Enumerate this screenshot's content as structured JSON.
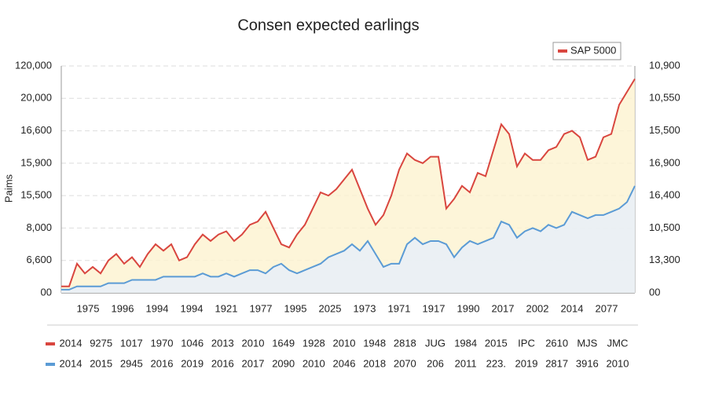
{
  "chart_data": {
    "type": "line",
    "title": "Consen expected earlings",
    "ylabel": "Paims",
    "legend": "SAP 5000",
    "legend_position": "upper right",
    "grid": true,
    "ylim": [
      0,
      7
    ],
    "yticks": [
      {
        "value": 0,
        "label": "00"
      },
      {
        "value": 1,
        "label": "6,600"
      },
      {
        "value": 2,
        "label": "8,000"
      },
      {
        "value": 3,
        "label": "15,500"
      },
      {
        "value": 4,
        "label": "15,900"
      },
      {
        "value": 5,
        "label": "16,600"
      },
      {
        "value": 6,
        "label": "20,000"
      },
      {
        "value": 7,
        "label": "120,000"
      }
    ],
    "y2lim": [
      0,
      7
    ],
    "y2ticks": [
      {
        "value": 0,
        "label": "00"
      },
      {
        "value": 1,
        "label": "13,300"
      },
      {
        "value": 2,
        "label": "10,500"
      },
      {
        "value": 3,
        "label": "16,400"
      },
      {
        "value": 4,
        "label": "16,900"
      },
      {
        "value": 5,
        "label": "15,500"
      },
      {
        "value": 6,
        "label": "10,550"
      },
      {
        "value": 7,
        "label": "10,900"
      }
    ],
    "xtick_labels": [
      "1975",
      "1996",
      "1994",
      "1994",
      "1921",
      "1977",
      "1995",
      "2025",
      "1973",
      "1971",
      "1917",
      "1990",
      "2017",
      "2002",
      "2014",
      "2077"
    ],
    "series": [
      {
        "name": "SAP 5000",
        "color": "#d9463f",
        "fill": "#fdf3cf",
        "values": [
          0.2,
          0.2,
          0.9,
          0.6,
          0.8,
          0.6,
          1.0,
          1.2,
          0.9,
          1.1,
          0.8,
          1.2,
          1.5,
          1.3,
          1.5,
          1.0,
          1.1,
          1.5,
          1.8,
          1.6,
          1.8,
          1.9,
          1.6,
          1.8,
          2.1,
          2.2,
          2.5,
          2.0,
          1.5,
          1.4,
          1.8,
          2.1,
          2.6,
          3.1,
          3.0,
          3.2,
          3.5,
          3.8,
          3.2,
          2.6,
          2.1,
          2.4,
          3.0,
          3.8,
          4.3,
          4.1,
          4.0,
          4.2,
          4.2,
          2.6,
          2.9,
          3.3,
          3.1,
          3.7,
          3.6,
          4.4,
          5.2,
          4.9,
          3.9,
          4.3,
          4.1,
          4.1,
          4.4,
          4.5,
          4.9,
          5.0,
          4.8,
          4.1,
          4.2,
          4.8,
          4.9,
          5.8,
          6.2,
          6.6
        ]
      },
      {
        "name": "",
        "color": "#5b9bd5",
        "fill": "#e6effa",
        "values": [
          0.1,
          0.1,
          0.2,
          0.2,
          0.2,
          0.2,
          0.3,
          0.3,
          0.3,
          0.4,
          0.4,
          0.4,
          0.4,
          0.5,
          0.5,
          0.5,
          0.5,
          0.5,
          0.6,
          0.5,
          0.5,
          0.6,
          0.5,
          0.6,
          0.7,
          0.7,
          0.6,
          0.8,
          0.9,
          0.7,
          0.6,
          0.7,
          0.8,
          0.9,
          1.1,
          1.2,
          1.3,
          1.5,
          1.3,
          1.6,
          1.2,
          0.8,
          0.9,
          0.9,
          1.5,
          1.7,
          1.5,
          1.6,
          1.6,
          1.5,
          1.1,
          1.4,
          1.6,
          1.5,
          1.6,
          1.7,
          2.2,
          2.1,
          1.7,
          1.9,
          2.0,
          1.9,
          2.1,
          2.0,
          2.1,
          2.5,
          2.4,
          2.3,
          2.4,
          2.4,
          2.5,
          2.6,
          2.8,
          3.3
        ]
      }
    ],
    "rows": [
      {
        "color": "#d9463f",
        "cells": [
          "2014",
          "9275",
          "1017",
          "1970",
          "1046",
          "2013",
          "2010",
          "1649",
          "1928",
          "2010",
          "1948",
          "2818",
          "JUG",
          "1984",
          "2015",
          "IPC",
          "2610",
          "MJS",
          "JMC"
        ]
      },
      {
        "color": "#5b9bd5",
        "cells": [
          "2014",
          "2015",
          "2945",
          "2016",
          "2019",
          "2016",
          "2017",
          "2090",
          "2010",
          "2046",
          "2018",
          "2070",
          "206",
          "2011",
          "223.",
          "2019",
          "2817",
          "3916",
          "2010"
        ]
      }
    ]
  }
}
